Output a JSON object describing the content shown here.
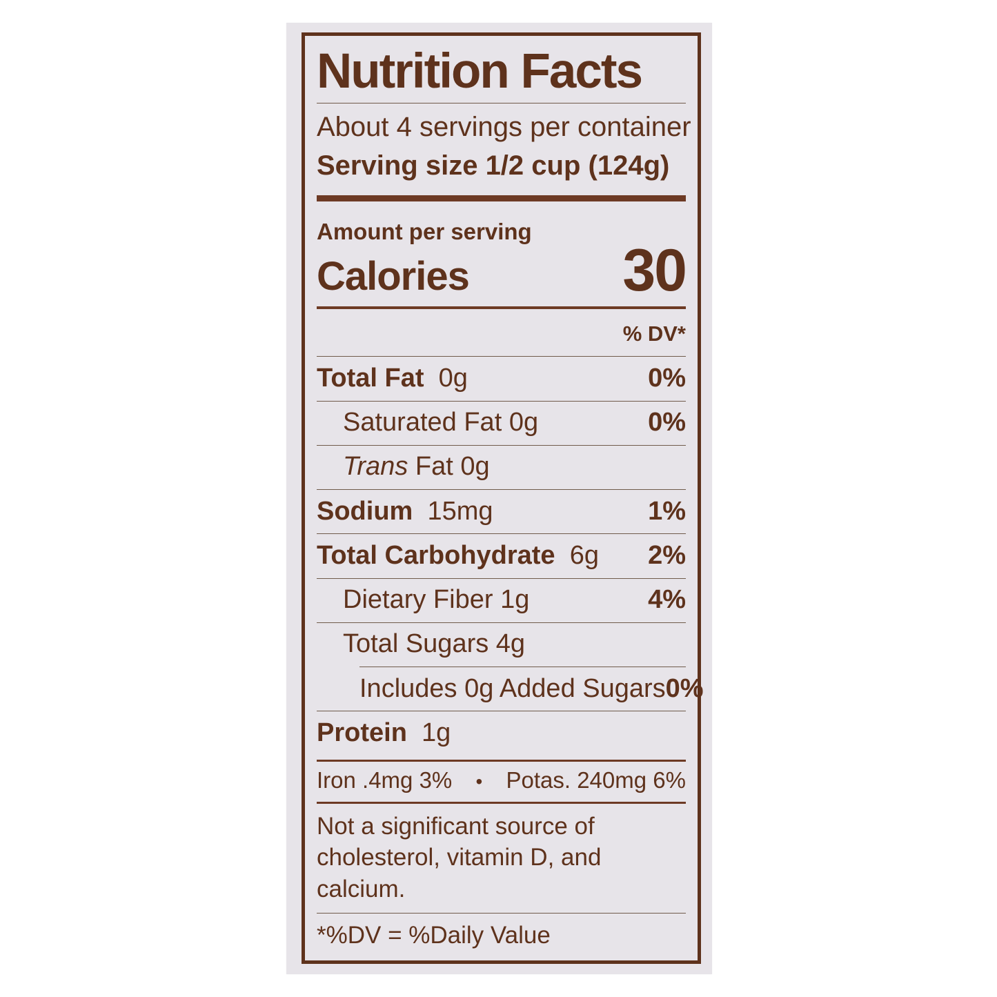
{
  "colors": {
    "brown_text": "#5e321c",
    "brown_bar": "#6d3a24",
    "paper_background": "#e7e4e9",
    "page_background": "#ffffff",
    "thin_rule": "#6f5a4a"
  },
  "label": {
    "title": "Nutrition Facts",
    "servings_per_container": "About 4 servings per container",
    "serving_size": {
      "label": "Serving size",
      "value": "1/2 cup (124g)"
    },
    "amount_per_serving": "Amount per serving",
    "calories_label": "Calories",
    "calories_value": "30",
    "dv_header": "% DV*",
    "rows": [
      {
        "name": "Total Fat",
        "amount": "0g",
        "dv": "0%"
      },
      {
        "name": "Saturated Fat",
        "amount": "0g",
        "dv": "0%"
      },
      {
        "name_italic": "Trans",
        "name_rest": " Fat",
        "amount": "0g",
        "dv": ""
      },
      {
        "name": "Sodium",
        "amount": "15mg",
        "dv": "1%"
      },
      {
        "name": "Total Carbohydrate",
        "amount": "6g",
        "dv": "2%"
      },
      {
        "name": "Dietary Fiber",
        "amount": "1g",
        "dv": "4%"
      },
      {
        "name": "Total Sugars",
        "amount": "4g",
        "dv": ""
      },
      {
        "name": "Includes 0g Added Sugars",
        "amount": "",
        "dv": "0%"
      },
      {
        "name": "Protein",
        "amount": "1g",
        "dv": ""
      }
    ],
    "minerals": {
      "iron": "Iron .4mg 3%",
      "bullet": "•",
      "potassium": "Potas. 240mg 6%"
    },
    "not_significant": {
      "line1": "Not a significant source of",
      "line2": "cholesterol, vitamin D, and calcium."
    },
    "footnote": "*%DV = %Daily Value"
  }
}
